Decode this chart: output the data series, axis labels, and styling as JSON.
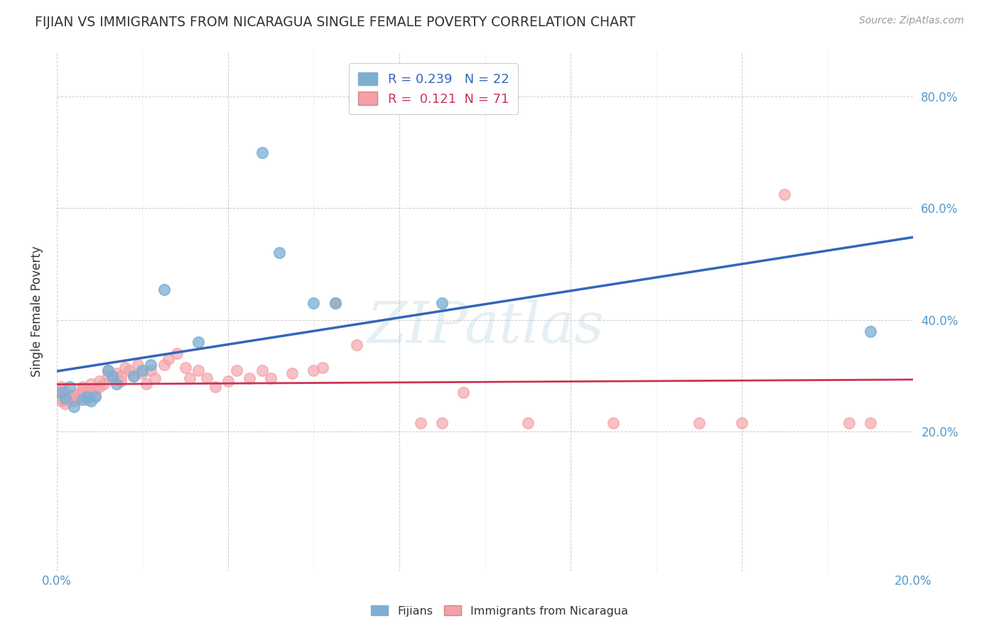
{
  "title": "FIJIAN VS IMMIGRANTS FROM NICARAGUA SINGLE FEMALE POVERTY CORRELATION CHART",
  "source": "Source: ZipAtlas.com",
  "ylabel": "Single Female Poverty",
  "ytick_labels": [
    "20.0%",
    "40.0%",
    "60.0%",
    "80.0%"
  ],
  "ytick_values": [
    0.2,
    0.4,
    0.6,
    0.8
  ],
  "xlim": [
    0.0,
    0.2
  ],
  "ylim": [
    -0.05,
    0.88
  ],
  "fijian_color": "#7BAFD4",
  "nicaragua_color": "#F4A0A8",
  "fijian_line_color": "#3366BB",
  "nicaragua_line_color": "#CC3355",
  "watermark": "ZIPatlas",
  "fijians_x": [
    0.001,
    0.002,
    0.003,
    0.004,
    0.006,
    0.007,
    0.008,
    0.009,
    0.012,
    0.013,
    0.014,
    0.018,
    0.02,
    0.022,
    0.025,
    0.033,
    0.048,
    0.052,
    0.06,
    0.065,
    0.09,
    0.19
  ],
  "fijians_y": [
    0.27,
    0.26,
    0.28,
    0.245,
    0.258,
    0.262,
    0.255,
    0.262,
    0.31,
    0.3,
    0.285,
    0.3,
    0.31,
    0.32,
    0.455,
    0.36,
    0.7,
    0.52,
    0.43,
    0.43,
    0.43,
    0.38
  ],
  "nicaragua_x": [
    0.001,
    0.001,
    0.001,
    0.001,
    0.001,
    0.002,
    0.002,
    0.002,
    0.002,
    0.003,
    0.003,
    0.003,
    0.004,
    0.004,
    0.004,
    0.005,
    0.005,
    0.006,
    0.006,
    0.007,
    0.007,
    0.007,
    0.008,
    0.008,
    0.009,
    0.009,
    0.01,
    0.01,
    0.011,
    0.012,
    0.012,
    0.013,
    0.014,
    0.015,
    0.015,
    0.016,
    0.017,
    0.018,
    0.019,
    0.02,
    0.021,
    0.022,
    0.023,
    0.025,
    0.026,
    0.028,
    0.03,
    0.031,
    0.033,
    0.035,
    0.037,
    0.04,
    0.042,
    0.045,
    0.048,
    0.05,
    0.055,
    0.06,
    0.062,
    0.065,
    0.07,
    0.085,
    0.09,
    0.095,
    0.11,
    0.13,
    0.15,
    0.16,
    0.17,
    0.185,
    0.19
  ],
  "nicaragua_y": [
    0.255,
    0.26,
    0.27,
    0.275,
    0.28,
    0.25,
    0.258,
    0.262,
    0.27,
    0.255,
    0.26,
    0.265,
    0.255,
    0.258,
    0.265,
    0.26,
    0.268,
    0.275,
    0.28,
    0.258,
    0.262,
    0.275,
    0.27,
    0.285,
    0.265,
    0.275,
    0.28,
    0.29,
    0.285,
    0.3,
    0.31,
    0.295,
    0.305,
    0.29,
    0.3,
    0.315,
    0.31,
    0.3,
    0.32,
    0.305,
    0.285,
    0.31,
    0.295,
    0.32,
    0.33,
    0.34,
    0.315,
    0.295,
    0.31,
    0.295,
    0.28,
    0.29,
    0.31,
    0.295,
    0.31,
    0.295,
    0.305,
    0.31,
    0.315,
    0.43,
    0.355,
    0.215,
    0.215,
    0.27,
    0.215,
    0.215,
    0.215,
    0.215,
    0.625,
    0.215,
    0.215
  ]
}
